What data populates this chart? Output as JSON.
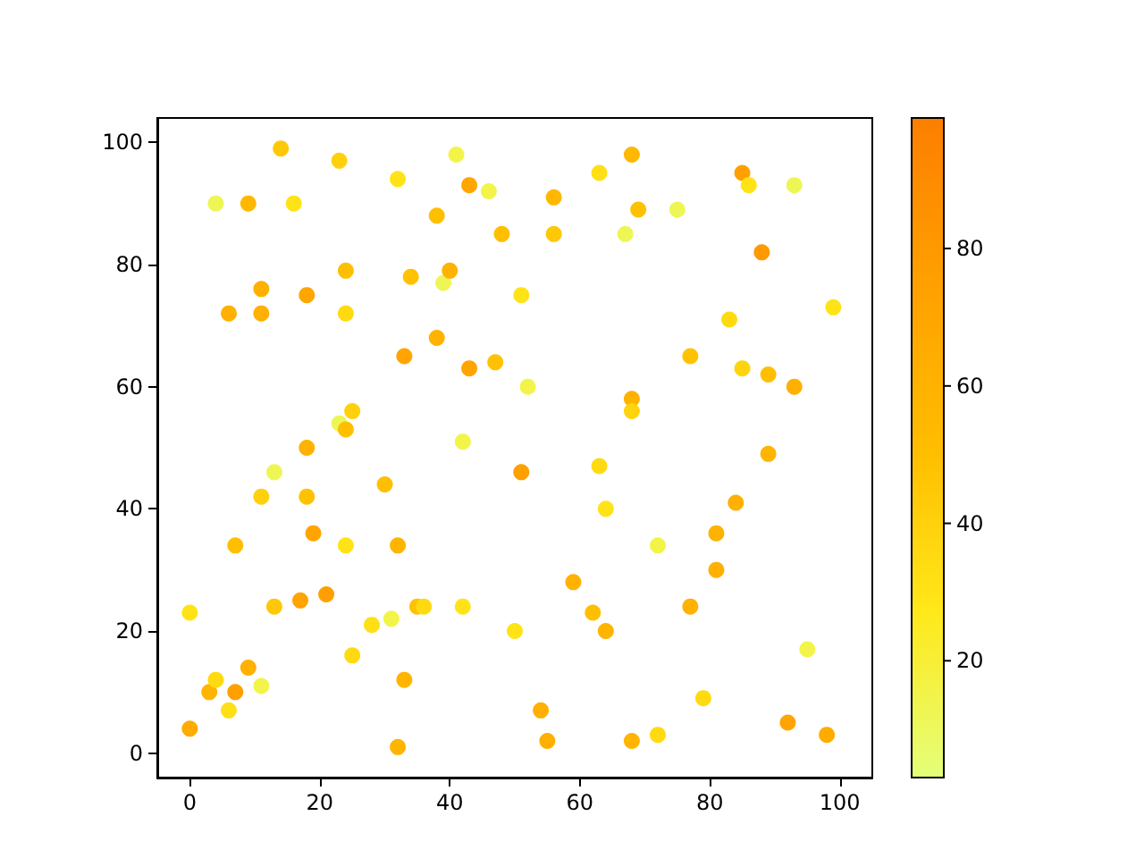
{
  "chart_data": {
    "type": "scatter",
    "marker": "circle",
    "xlim": [
      -5,
      105
    ],
    "ylim": [
      -4,
      104
    ],
    "xticks": [
      0,
      20,
      40,
      60,
      80,
      100
    ],
    "yticks": [
      0,
      20,
      40,
      60,
      80,
      100
    ],
    "clim": [
      3,
      99
    ],
    "cticks": [
      20,
      40,
      60,
      80
    ],
    "x": [
      14,
      23,
      41,
      68,
      4,
      9,
      16,
      32,
      43,
      46,
      38,
      48,
      56,
      63,
      56,
      69,
      75,
      67,
      85,
      86,
      93,
      88,
      6,
      11,
      11,
      18,
      24,
      24,
      34,
      39,
      40,
      38,
      33,
      43,
      47,
      51,
      52,
      77,
      83,
      85,
      89,
      93,
      99,
      25,
      23,
      24,
      18,
      13,
      11,
      18,
      19,
      7,
      24,
      30,
      32,
      42,
      51,
      63,
      64,
      72,
      68,
      68,
      84,
      89,
      81,
      81,
      0,
      13,
      17,
      21,
      25,
      28,
      31,
      35,
      36,
      42,
      33,
      3,
      4,
      6,
      7,
      9,
      11,
      0,
      32,
      50,
      59,
      62,
      64,
      54,
      55,
      68,
      72,
      77,
      79,
      92,
      98,
      95
    ],
    "values": [
      99,
      97,
      98,
      98,
      90,
      90,
      90,
      94,
      93,
      92,
      88,
      85,
      91,
      95,
      85,
      89,
      89,
      85,
      95,
      93,
      93,
      82,
      72,
      76,
      72,
      75,
      79,
      72,
      78,
      77,
      79,
      68,
      65,
      63,
      64,
      75,
      60,
      65,
      71,
      63,
      62,
      60,
      73,
      56,
      54,
      53,
      50,
      46,
      42,
      42,
      36,
      34,
      34,
      44,
      34,
      51,
      46,
      47,
      40,
      34,
      58,
      56,
      41,
      49,
      36,
      30,
      23,
      24,
      25,
      26,
      16,
      21,
      22,
      24,
      24,
      24,
      12,
      10,
      12,
      7,
      10,
      14,
      11,
      4,
      1,
      20,
      28,
      23,
      20,
      7,
      2,
      2,
      3,
      24,
      9,
      5,
      3,
      17
    ],
    "cvalues": [
      45,
      40,
      15,
      55,
      12,
      55,
      30,
      30,
      70,
      15,
      50,
      50,
      55,
      32,
      45,
      48,
      12,
      12,
      75,
      30,
      12,
      80,
      62,
      62,
      62,
      70,
      50,
      35,
      48,
      12,
      60,
      60,
      72,
      72,
      48,
      30,
      15,
      48,
      35,
      38,
      50,
      62,
      30,
      40,
      12,
      50,
      60,
      12,
      40,
      48,
      72,
      50,
      30,
      50,
      58,
      15,
      75,
      35,
      30,
      15,
      60,
      38,
      62,
      58,
      60,
      62,
      30,
      45,
      72,
      75,
      35,
      32,
      15,
      48,
      35,
      30,
      58,
      58,
      35,
      32,
      75,
      62,
      15,
      65,
      58,
      30,
      60,
      50,
      58,
      62,
      62,
      58,
      35,
      60,
      35,
      72,
      65,
      15
    ]
  }
}
